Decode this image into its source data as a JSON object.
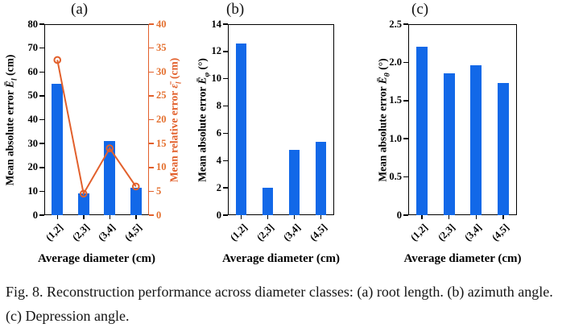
{
  "figure": {
    "caption": "Fig. 8. Reconstruction performance across diameter classes: (a) root length. (b) azimuth angle. (c) Depression angle."
  },
  "colors": {
    "bar_blue": "#1268e8",
    "line_orange": "#e2602c",
    "orange_tick_text": "#e4702f",
    "axis_black": "#000000"
  },
  "chart_data": [
    {
      "type": "bar",
      "panel_label": "(a)",
      "categories": [
        "(1,2]",
        "(2,3]",
        "(3,4]",
        "(4,5]"
      ],
      "xlabel": "Average diameter (cm)",
      "series": [
        {
          "name": "mean-absolute-error-bars",
          "type": "bar",
          "axis": "left",
          "values": [
            55,
            9,
            31,
            11.5
          ],
          "color": "#1268e8"
        },
        {
          "name": "mean-relative-error-line",
          "type": "line",
          "axis": "right",
          "values": [
            32.5,
            4.5,
            14,
            6
          ],
          "color": "#e2602c",
          "marker": "open-circle"
        }
      ],
      "left_axis": {
        "label_pre": "Mean absolute error ",
        "label_sym": "Ē",
        "label_sub": "l",
        "label_post": " (cm)",
        "range": [
          0,
          80
        ],
        "ticks": [
          0,
          10,
          20,
          30,
          40,
          50,
          60,
          70,
          80
        ],
        "color": "#000000"
      },
      "right_axis": {
        "label_pre": "Mean relative error ",
        "label_sym": "ε̄",
        "label_sub": "l",
        "label_post": " (cm)",
        "range": [
          0,
          40
        ],
        "ticks": [
          0,
          5,
          10,
          15,
          20,
          25,
          30,
          35,
          40
        ],
        "color": "#e2602c"
      }
    },
    {
      "type": "bar",
      "panel_label": "(b)",
      "categories": [
        "(1,2]",
        "(2,3]",
        "(3,4]",
        "(4,5]"
      ],
      "xlabel": "Average diameter (cm)",
      "series": [
        {
          "name": "mean-absolute-error-bars",
          "type": "bar",
          "axis": "left",
          "values": [
            12.6,
            2.0,
            4.8,
            5.4
          ],
          "color": "#1268e8"
        }
      ],
      "left_axis": {
        "label_pre": "Mean absolute error ",
        "label_sym": "Ē",
        "label_sub": "φ",
        "label_post": " (°)",
        "range": [
          0,
          14
        ],
        "ticks": [
          0,
          2,
          4,
          6,
          8,
          10,
          12,
          14
        ],
        "color": "#000000"
      }
    },
    {
      "type": "bar",
      "panel_label": "(c)",
      "categories": [
        "(1,2]",
        "(2,3]",
        "(3,4]",
        "(4,5]"
      ],
      "xlabel": "Average diameter (cm)",
      "series": [
        {
          "name": "mean-absolute-error-bars",
          "type": "bar",
          "axis": "left",
          "values": [
            2.2,
            1.86,
            1.96,
            1.73
          ],
          "color": "#1268e8"
        }
      ],
      "left_axis": {
        "label_pre": "Mean absolute error ",
        "label_sym": "Ē",
        "label_sub": "θ",
        "label_post": " (°)",
        "range": [
          0,
          2.5
        ],
        "ticks": [
          "0",
          "0.5",
          "1.0",
          "1.5",
          "2.0",
          "2.5"
        ],
        "color": "#000000"
      }
    }
  ]
}
